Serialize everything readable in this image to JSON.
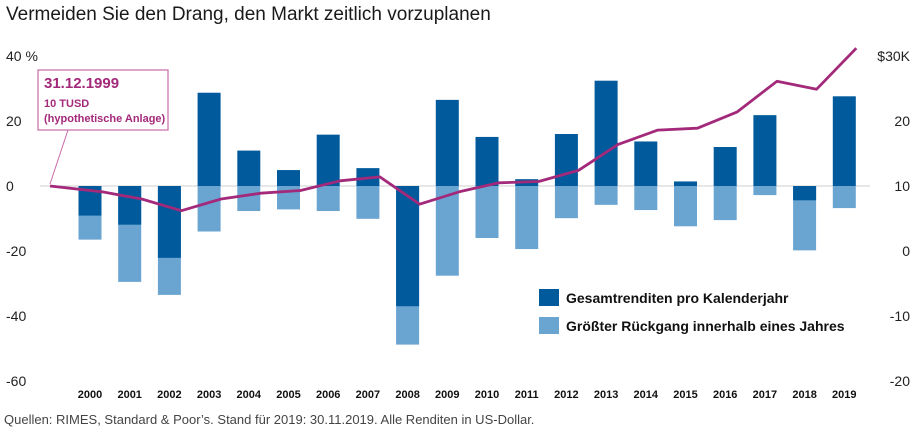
{
  "title": "Vermeiden Sie den Drang, den Markt zeitlich vorzuplanen",
  "source": "Quellen: RIMES, Standard & Poor’s. Stand für 2019: 30.11.2019. Alle Renditen in US-Dollar.",
  "colors": {
    "return": "#005a9c",
    "drawdown": "#6aa4d1",
    "line": "#a3297a"
  },
  "callout": {
    "date": "31.12.1999",
    "line1": "10 TUSD",
    "line2": "(hypothetische Anlage)"
  },
  "chart_data": {
    "type": "bar",
    "title": "Vermeiden Sie den Drang, den Markt zeitlich vorzuplanen",
    "categories": [
      "2000",
      "2001",
      "2002",
      "2003",
      "2004",
      "2005",
      "2006",
      "2007",
      "2008",
      "2009",
      "2010",
      "2011",
      "2012",
      "2013",
      "2014",
      "2015",
      "2016",
      "2017",
      "2018",
      "2019"
    ],
    "left_axis": {
      "ticks": [
        "40 %",
        "20",
        "0",
        "-20",
        "-40",
        "-60"
      ],
      "tick_values": [
        40,
        20,
        0,
        -20,
        -40,
        -60
      ],
      "ylim": [
        -60,
        43
      ]
    },
    "right_axis": {
      "ticks": [
        "$30K",
        "20",
        "10",
        "0",
        "-10",
        "-20"
      ],
      "tick_values": [
        30,
        20,
        10,
        0,
        -10,
        -20
      ],
      "ylim": [
        -20,
        31.5
      ]
    },
    "series": [
      {
        "name": "Gesamtrenditen pro Kalenderjahr",
        "axis": "left",
        "values": [
          -9.1,
          -11.9,
          -22.1,
          28.7,
          10.9,
          4.9,
          15.8,
          5.5,
          -37.0,
          26.5,
          15.1,
          2.1,
          16.0,
          32.4,
          13.7,
          1.4,
          12.0,
          21.8,
          -4.4,
          27.6
        ]
      },
      {
        "name": "Größter Rückgang innerhalb eines Jahres",
        "axis": "left",
        "values": [
          -16.5,
          -29.5,
          -33.5,
          -14.0,
          -7.7,
          -7.2,
          -7.7,
          -10.1,
          -48.8,
          -27.6,
          -16.0,
          -19.4,
          -9.9,
          -5.8,
          -7.4,
          -12.4,
          -10.5,
          -2.8,
          -19.8,
          -6.8
        ]
      },
      {
        "name": "10 TUSD (hypothetische Anlage)",
        "axis": "right",
        "type": "line",
        "x": [
          "1999",
          "2000",
          "2001",
          "2002",
          "2003",
          "2004",
          "2005",
          "2006",
          "2007",
          "2008",
          "2009",
          "2010",
          "2011",
          "2012",
          "2013",
          "2014",
          "2015",
          "2016",
          "2017",
          "2018",
          "2019"
        ],
        "values": [
          10.0,
          9.1,
          8.0,
          6.2,
          8.0,
          8.9,
          9.3,
          10.8,
          11.4,
          7.2,
          9.1,
          10.5,
          10.7,
          12.4,
          16.4,
          18.6,
          18.9,
          21.4,
          26.1,
          24.9,
          31.2
        ]
      }
    ]
  }
}
